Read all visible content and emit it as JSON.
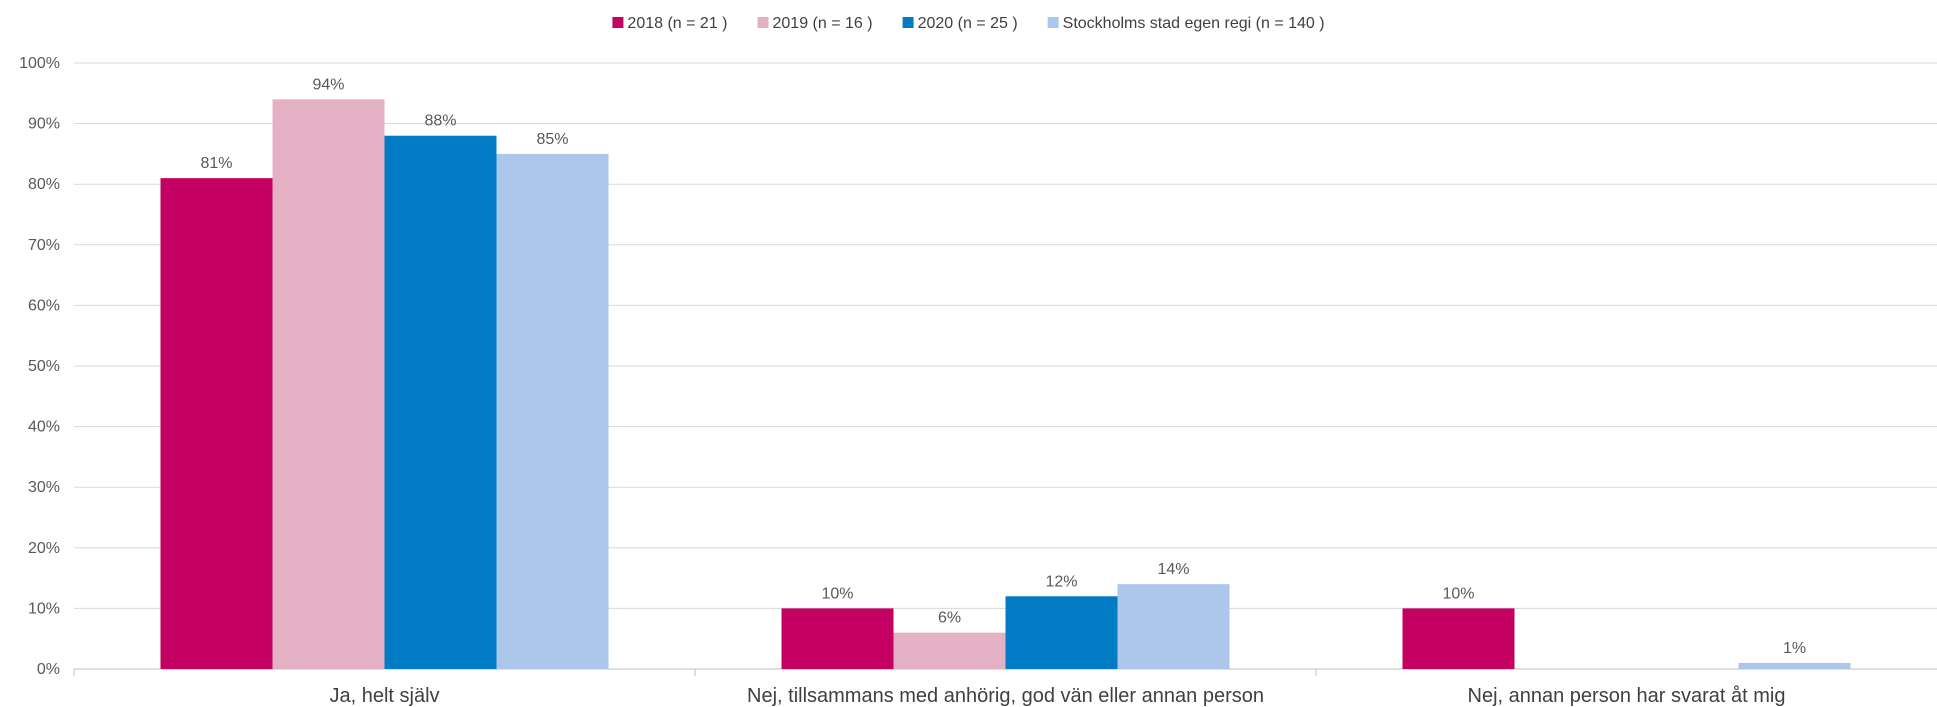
{
  "chart_data": {
    "type": "bar",
    "categories": [
      "Ja, helt själv",
      "Nej, tillsammans med anhörig, god vän eller annan person",
      "Nej, annan person har svarat åt mig"
    ],
    "series": [
      {
        "name": "2018 (n = 21 )",
        "color": "#c40062",
        "values": [
          81,
          10,
          10
        ],
        "labels": [
          "81%",
          "10%",
          "10%"
        ]
      },
      {
        "name": "2019 (n = 16 )",
        "color": "#e4b1c4",
        "values": [
          94,
          6,
          0
        ],
        "labels": [
          "94%",
          "6%",
          ""
        ]
      },
      {
        "name": "2020 (n = 25 )",
        "color": "#007bc4",
        "values": [
          88,
          12,
          0
        ],
        "labels": [
          "88%",
          "12%",
          ""
        ]
      },
      {
        "name": "Stockholms stad egen regi (n = 140 )",
        "color": "#adc7ea",
        "values": [
          85,
          14,
          1
        ],
        "labels": [
          "85%",
          "14%",
          "1%"
        ]
      }
    ],
    "yticks": [
      "0%",
      "10%",
      "20%",
      "30%",
      "40%",
      "50%",
      "60%",
      "70%",
      "80%",
      "90%",
      "100%"
    ],
    "ylim": [
      0,
      100
    ],
    "grid": true,
    "legend": "top-center"
  }
}
